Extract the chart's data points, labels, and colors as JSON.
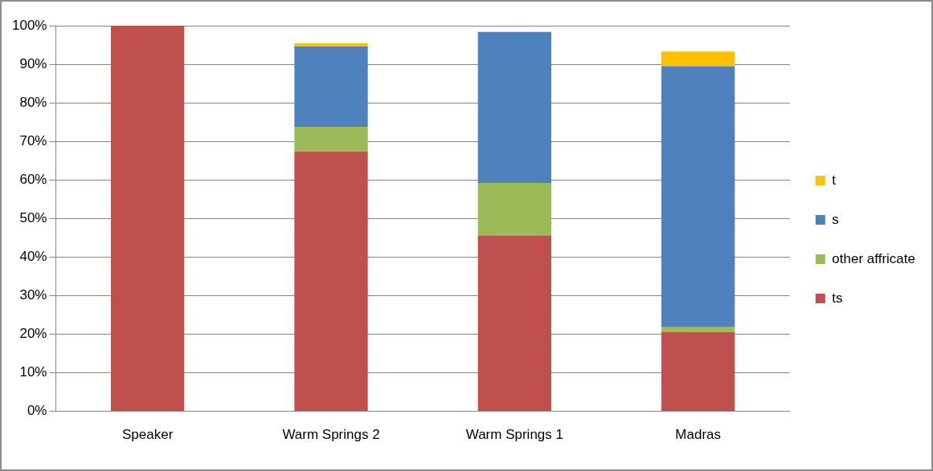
{
  "chart_data": {
    "type": "bar",
    "stacked": true,
    "categories": [
      "Speaker",
      "Warm Springs 2",
      "Warm Springs 1",
      "Madras"
    ],
    "series": [
      {
        "name": "ts",
        "color": "#c0504d",
        "values": [
          100,
          67.4,
          45.6,
          20.5
        ]
      },
      {
        "name": "other affricate",
        "color": "#9bbb59",
        "values": [
          0,
          6.4,
          13.6,
          1.3
        ]
      },
      {
        "name": "s",
        "color": "#4f81bd",
        "values": [
          0,
          20.8,
          39.2,
          67.7
        ]
      },
      {
        "name": "t",
        "color": "#ffc000",
        "values": [
          0,
          0.8,
          0,
          3.8
        ]
      }
    ],
    "ylim": [
      0,
      100
    ],
    "yticks": [
      {
        "value": 0,
        "label": "0%"
      },
      {
        "value": 10,
        "label": "10%"
      },
      {
        "value": 20,
        "label": "20%"
      },
      {
        "value": 30,
        "label": "30%"
      },
      {
        "value": 40,
        "label": "40%"
      },
      {
        "value": 50,
        "label": "50%"
      },
      {
        "value": 60,
        "label": "60%"
      },
      {
        "value": 70,
        "label": "70%"
      },
      {
        "value": 80,
        "label": "80%"
      },
      {
        "value": 90,
        "label": "90%"
      },
      {
        "value": 100,
        "label": "100%"
      }
    ],
    "grid": "y",
    "legend": "right"
  }
}
